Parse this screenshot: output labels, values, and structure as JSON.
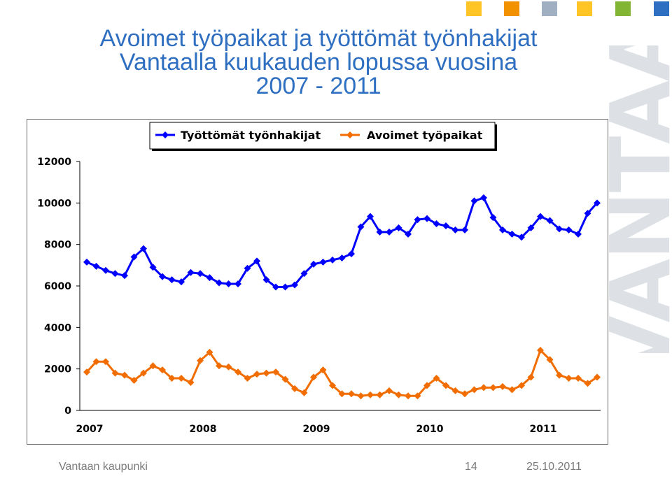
{
  "header": {
    "squares": [
      "#ffc425",
      "#f39200",
      "#a0afc2",
      "#ffc425",
      "#82b534",
      "#2f6fc1"
    ],
    "watermark": "VANTAA"
  },
  "slide": {
    "title_lines": [
      "Avoimet työpaikat ja työttömät työnhakijat",
      "Vantaalla kuukauden lopussa vuosina",
      "2007 - 2011"
    ]
  },
  "footer": {
    "organization": "Vantaan kaupunki",
    "page": "14",
    "date": "25.10.2011"
  },
  "chart_data": {
    "type": "line",
    "ylim": [
      0,
      12000
    ],
    "yticks": [
      "0",
      "2000",
      "4000",
      "6000",
      "8000",
      "10000",
      "12000"
    ],
    "xtick_labels": [
      "2007",
      "2008",
      "2009",
      "2010",
      "2011"
    ],
    "legend_position": "top",
    "grid": false,
    "series": [
      {
        "name": "Työttömät työnhakijat",
        "color": "#0000ff",
        "marker": "diamond",
        "values": [
          7150,
          6950,
          6750,
          6600,
          6500,
          7400,
          7800,
          6900,
          6450,
          6300,
          6200,
          6650,
          6600,
          6400,
          6150,
          6100,
          6100,
          6850,
          7200,
          6300,
          5950,
          5950,
          6050,
          6600,
          7050,
          7150,
          7250,
          7350,
          7550,
          8850,
          9350,
          8600,
          8600,
          8800,
          8500,
          9200,
          9250,
          9000,
          8900,
          8700,
          8700,
          10100,
          10250,
          9300,
          8700,
          8500,
          8350,
          8800,
          9350,
          9150,
          8750,
          8700,
          8500,
          9500,
          10000
        ]
      },
      {
        "name": "Avoimet työpaikat",
        "color": "#f26d00",
        "marker": "diamond",
        "values": [
          1850,
          2350,
          2350,
          1800,
          1700,
          1450,
          1800,
          2150,
          1950,
          1550,
          1550,
          1350,
          2400,
          2800,
          2150,
          2100,
          1850,
          1550,
          1750,
          1800,
          1850,
          1500,
          1050,
          850,
          1600,
          1950,
          1200,
          800,
          800,
          700,
          750,
          750,
          950,
          750,
          700,
          700,
          1200,
          1550,
          1200,
          950,
          800,
          1000,
          1100,
          1100,
          1150,
          1000,
          1200,
          1600,
          2900,
          2450,
          1700,
          1550,
          1550,
          1300,
          1600
        ]
      }
    ]
  }
}
